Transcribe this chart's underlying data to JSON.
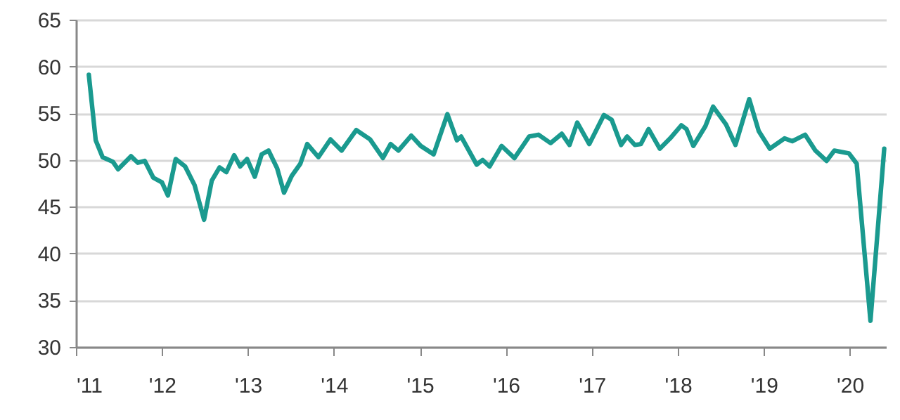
{
  "chart_data": {
    "type": "line",
    "x": [
      2011.15,
      2011.23,
      2011.31,
      2011.43,
      2011.49,
      2011.64,
      2011.72,
      2011.8,
      2011.9,
      2012.0,
      2012.07,
      2012.16,
      2012.27,
      2012.38,
      2012.49,
      2012.58,
      2012.67,
      2012.75,
      2012.84,
      2012.91,
      2012.99,
      2013.08,
      2013.16,
      2013.24,
      2013.34,
      2013.42,
      2013.51,
      2013.61,
      2013.69,
      2013.82,
      2013.96,
      2014.09,
      2014.26,
      2014.42,
      2014.57,
      2014.66,
      2014.75,
      2014.9,
      2015.01,
      2015.16,
      2015.32,
      2015.43,
      2015.48,
      2015.66,
      2015.73,
      2015.81,
      2015.95,
      2016.1,
      2016.27,
      2016.38,
      2016.52,
      2016.65,
      2016.74,
      2016.83,
      2016.97,
      2017.14,
      2017.23,
      2017.34,
      2017.41,
      2017.5,
      2017.57,
      2017.66,
      2017.79,
      2017.91,
      2018.04,
      2018.1,
      2018.18,
      2018.32,
      2018.41,
      2018.56,
      2018.67,
      2018.83,
      2018.94,
      2019.07,
      2019.24,
      2019.33,
      2019.48,
      2019.6,
      2019.73,
      2019.82,
      2019.99,
      2020.08,
      2020.24,
      2020.4
    ],
    "series": [
      {
        "color": "#1a9a8f",
        "values": [
          59.1,
          52.1,
          50.3,
          49.8,
          49.0,
          50.4,
          49.7,
          49.9,
          48.1,
          47.6,
          46.2,
          50.1,
          49.3,
          47.3,
          43.6,
          47.8,
          49.2,
          48.7,
          50.5,
          49.3,
          50.1,
          48.2,
          50.6,
          51.0,
          49.1,
          46.5,
          48.3,
          49.6,
          51.7,
          50.3,
          52.2,
          51.0,
          53.2,
          52.2,
          50.2,
          51.7,
          51.0,
          52.6,
          51.5,
          50.6,
          54.9,
          52.1,
          52.5,
          49.5,
          50.0,
          49.3,
          51.5,
          50.2,
          52.5,
          52.7,
          51.8,
          52.8,
          51.6,
          54.0,
          51.7,
          54.8,
          54.3,
          51.6,
          52.5,
          51.6,
          51.7,
          53.3,
          51.2,
          52.3,
          53.7,
          53.3,
          51.5,
          53.6,
          55.7,
          53.8,
          51.6,
          56.5,
          53.1,
          51.2,
          52.3,
          52.0,
          52.7,
          51.0,
          49.9,
          51.0,
          50.7,
          49.6,
          32.8,
          51.2
        ]
      }
    ],
    "xlim": [
      2011,
      2020.42
    ],
    "xticks": [
      {
        "value": 2011,
        "label": "'11"
      },
      {
        "value": 2012,
        "label": "'12"
      },
      {
        "value": 2013,
        "label": "'13"
      },
      {
        "value": 2014,
        "label": "'14"
      },
      {
        "value": 2015,
        "label": "'15"
      },
      {
        "value": 2016,
        "label": "'16"
      },
      {
        "value": 2017,
        "label": "'17"
      },
      {
        "value": 2018,
        "label": "'18"
      },
      {
        "value": 2019,
        "label": "'19"
      },
      {
        "value": 2020,
        "label": "'20"
      }
    ],
    "ylim": [
      30,
      65
    ],
    "yticks": [
      30,
      35,
      40,
      45,
      50,
      55,
      60,
      65
    ],
    "grid": "y",
    "line_style": "solid",
    "marker": "none"
  }
}
